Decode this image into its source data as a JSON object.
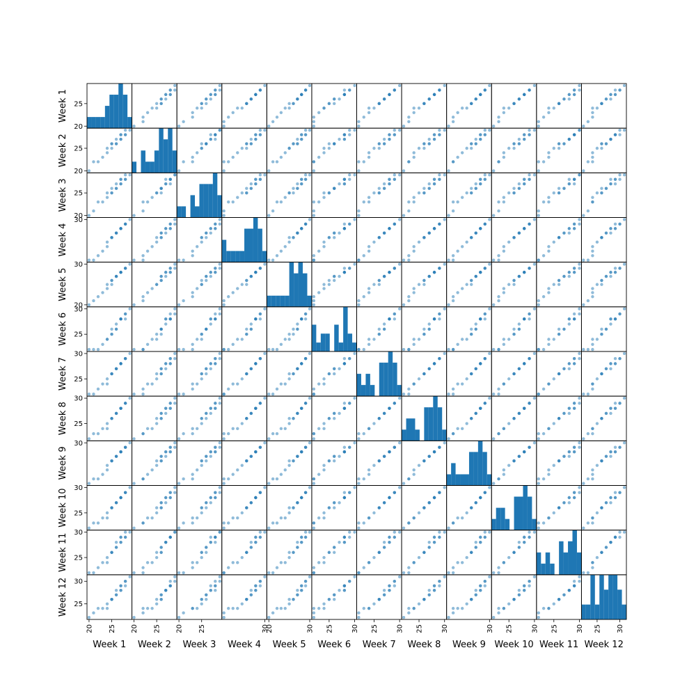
{
  "chart_data": {
    "type": "scatter-matrix",
    "title": "",
    "variables": [
      "Week 1",
      "Week 2",
      "Week 3",
      "Week 4",
      "Week 5",
      "Week 6",
      "Week 7",
      "Week 8",
      "Week 9",
      "Week 10",
      "Week 11",
      "Week 12"
    ],
    "series": [
      {
        "name": "Week 1",
        "values": [
          20,
          21,
          22,
          23,
          24,
          24,
          25,
          25,
          26,
          26,
          27,
          27,
          27,
          28,
          28,
          29,
          27,
          26,
          25,
          28
        ]
      },
      {
        "name": "Week 2",
        "values": [
          20,
          22,
          22,
          23,
          24,
          25,
          25,
          26,
          26,
          27,
          27,
          28,
          28,
          28,
          29,
          29,
          27,
          26,
          26,
          28
        ]
      },
      {
        "name": "Week 3",
        "values": [
          20,
          21,
          23,
          23,
          24,
          25,
          25,
          26,
          26,
          27,
          27,
          27,
          28,
          28,
          29,
          29,
          28,
          26,
          25,
          28
        ]
      },
      {
        "name": "Week 4",
        "values": [
          21,
          21,
          22,
          23,
          24,
          25,
          26,
          26,
          27,
          27,
          28,
          28,
          28,
          29,
          29,
          30,
          28,
          27,
          26,
          29
        ]
      },
      {
        "name": "Week 5",
        "values": [
          20,
          21,
          22,
          23,
          24,
          25,
          25,
          26,
          27,
          27,
          28,
          28,
          28,
          29,
          29,
          30,
          28,
          27,
          26,
          29
        ]
      },
      {
        "name": "Week 6",
        "values": [
          22,
          22,
          22,
          23,
          24,
          24,
          25,
          26,
          26,
          27,
          28,
          28,
          28,
          29,
          29,
          30,
          28,
          26,
          25,
          28
        ]
      },
      {
        "name": "Week 7",
        "values": [
          22,
          22,
          23,
          24,
          24,
          25,
          26,
          26,
          27,
          27,
          28,
          28,
          28,
          29,
          29,
          30,
          28,
          27,
          26,
          29
        ]
      },
      {
        "name": "Week 8",
        "values": [
          22,
          23,
          23,
          24,
          24,
          25,
          26,
          26,
          27,
          27,
          28,
          28,
          28,
          29,
          29,
          30,
          28,
          27,
          26,
          29
        ]
      },
      {
        "name": "Week 9",
        "values": [
          21,
          22,
          22,
          23,
          24,
          25,
          26,
          26,
          27,
          27,
          28,
          28,
          28,
          29,
          29,
          30,
          28,
          27,
          26,
          29
        ]
      },
      {
        "name": "Week 10",
        "values": [
          22,
          23,
          23,
          24,
          24,
          25,
          26,
          26,
          27,
          27,
          28,
          28,
          28,
          29,
          29,
          30,
          28,
          27,
          26,
          29
        ]
      },
      {
        "name": "Week 11",
        "values": [
          22,
          22,
          23,
          24,
          24,
          25,
          26,
          26,
          27,
          28,
          28,
          29,
          29,
          29,
          30,
          30,
          28,
          27,
          26,
          29
        ]
      },
      {
        "name": "Week 12",
        "values": [
          22,
          23,
          24,
          24,
          24,
          25,
          26,
          26,
          27,
          28,
          28,
          29,
          29,
          30,
          30,
          31,
          28,
          27,
          26,
          29
        ]
      }
    ],
    "row_ticks": [
      {
        "ticks": [
          20,
          25
        ],
        "labels": [
          "20",
          "25"
        ]
      },
      {
        "ticks": [
          20,
          25
        ],
        "labels": [
          "20",
          "25"
        ]
      },
      {
        "ticks": [
          20,
          25
        ],
        "labels": [
          "20",
          "25"
        ]
      },
      {
        "ticks": [
          20,
          30
        ],
        "labels": [
          "20",
          "30"
        ]
      },
      {
        "ticks": [
          20,
          30
        ],
        "labels": [
          "20",
          "30"
        ]
      },
      {
        "ticks": [
          25,
          30
        ],
        "labels": [
          "25",
          "30"
        ]
      },
      {
        "ticks": [
          25,
          30
        ],
        "labels": [
          "25",
          "30"
        ]
      },
      {
        "ticks": [
          25,
          30
        ],
        "labels": [
          "25",
          "30"
        ]
      },
      {
        "ticks": [
          20,
          30
        ],
        "labels": [
          "20",
          "30"
        ]
      },
      {
        "ticks": [
          25,
          30
        ],
        "labels": [
          "25",
          "30"
        ]
      },
      {
        "ticks": [
          25,
          30
        ],
        "labels": [
          "25",
          "30"
        ]
      },
      {
        "ticks": [
          25,
          30
        ],
        "labels": [
          "25",
          "30"
        ]
      }
    ],
    "col_ticks": [
      {
        "ticks": [
          20,
          25
        ],
        "labels": [
          "20",
          "25"
        ]
      },
      {
        "ticks": [
          20,
          25
        ],
        "labels": [
          "20",
          "25"
        ]
      },
      {
        "ticks": [
          20,
          25
        ],
        "labels": [
          "20",
          "25"
        ]
      },
      {
        "ticks": [
          20,
          30
        ],
        "labels": [
          "20",
          "30"
        ]
      },
      {
        "ticks": [
          20,
          30
        ],
        "labels": [
          "20",
          "30"
        ]
      },
      {
        "ticks": [
          25,
          30
        ],
        "labels": [
          "25",
          "30"
        ]
      },
      {
        "ticks": [
          25,
          30
        ],
        "labels": [
          "25",
          "30"
        ]
      },
      {
        "ticks": [
          25,
          30
        ],
        "labels": [
          "25",
          "30"
        ]
      },
      {
        "ticks": [
          20,
          30
        ],
        "labels": [
          "20",
          "30"
        ]
      },
      {
        "ticks": [
          25,
          30
        ],
        "labels": [
          "25",
          "30"
        ]
      },
      {
        "ticks": [
          25,
          30
        ],
        "labels": [
          "25",
          "30"
        ]
      },
      {
        "ticks": [
          25,
          30
        ],
        "labels": [
          "25",
          "30"
        ]
      }
    ],
    "diagonal": "histogram",
    "grid": false,
    "legend": "none"
  },
  "colors": {
    "histogram": "#1f77b4",
    "point": "#1f77b4",
    "frame": "#000000"
  }
}
